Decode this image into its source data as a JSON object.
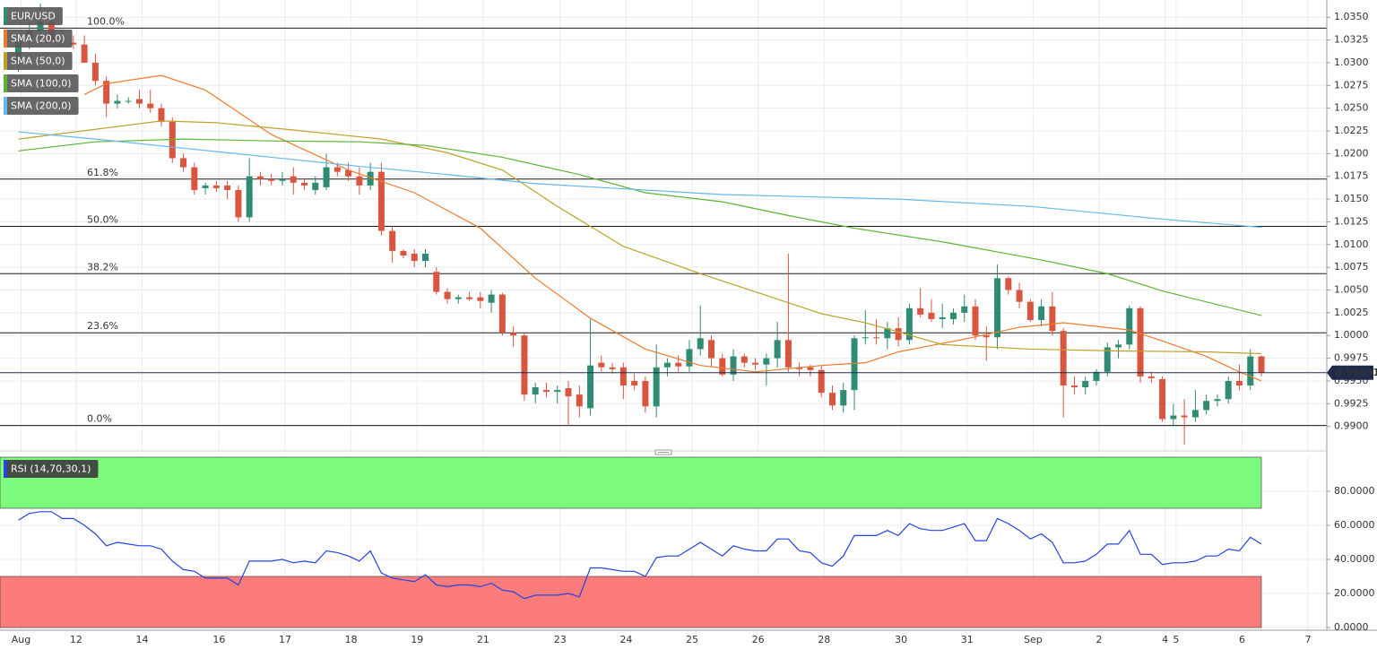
{
  "chart_data": [
    {
      "type": "candlestick",
      "name": "EUR/USD",
      "categories": [
        "Aug",
        null,
        null,
        null,
        null,
        "12",
        null,
        null,
        null,
        null,
        null,
        "14",
        null,
        null,
        null,
        null,
        null,
        null,
        "16",
        null,
        null,
        null,
        null,
        null,
        "17",
        null,
        null,
        null,
        null,
        null,
        "18",
        null,
        null,
        null,
        null,
        null,
        "19",
        null,
        null,
        null,
        null,
        null,
        "21",
        null,
        null,
        null,
        null,
        null,
        null,
        "23",
        null,
        null,
        null,
        null,
        null,
        "24",
        null,
        null,
        null,
        null,
        null,
        "25",
        null,
        null,
        null,
        null,
        null,
        "26",
        null,
        null,
        null,
        null,
        null,
        "28",
        null,
        null,
        null,
        null,
        null,
        null,
        "30",
        null,
        null,
        null,
        null,
        null,
        "31",
        null,
        null,
        null,
        null,
        null,
        "Sep",
        null,
        null,
        null,
        null,
        null,
        "2",
        null,
        null,
        null,
        null,
        null,
        "4",
        "5",
        null,
        null,
        null,
        null,
        null,
        "6",
        null,
        null,
        null,
        null,
        null,
        "7"
      ],
      "open": [
        1.03,
        1.0325,
        1.0335,
        1.0345,
        1.0325,
        1.0322,
        1.032,
        1.03,
        1.028,
        1.0255,
        1.0258,
        1.026,
        1.0255,
        1.025,
        1.0235,
        1.0195,
        1.0185,
        1.0162,
        1.0165,
        1.0165,
        1.016,
        1.013,
        1.0175,
        1.0172,
        1.017,
        1.0175,
        1.0168,
        1.016,
        1.0163,
        1.0185,
        1.0182,
        1.0175,
        1.0165,
        1.018,
        1.0115,
        1.0093,
        1.009,
        1.0082,
        1.007,
        1.0048,
        1.004,
        1.0042,
        1.0042,
        1.0036,
        1.0045,
        1.0003,
        1.0,
        0.9935,
        0.994,
        0.9938,
        0.9942,
        0.9935,
        0.992,
        0.997,
        0.9965,
        0.9965,
        0.995,
        0.995,
        0.9922,
        0.9965,
        0.997,
        0.9966,
        0.9985,
        0.9995,
        0.9975,
        0.9957,
        0.9977,
        0.997,
        0.9968,
        0.9975,
        0.9995,
        0.9965,
        0.9965,
        0.9962,
        0.9937,
        0.9923,
        0.994,
        0.9997,
        0.9998,
        0.9997,
        1.0008,
        0.9995,
        1.003,
        1.0025,
        1.0018,
        1.0018,
        1.0025,
        1.0032,
        1.0,
        0.9998,
        1.0063,
        1.005,
        1.0037,
        1.0017,
        1.0032,
        1.0005,
        0.9945,
        0.9943,
        0.995,
        0.996,
        0.9987,
        0.999,
        1.003,
        0.9955,
        0.9952,
        0.9908,
        0.9912,
        0.991,
        0.9918,
        0.9928,
        0.993,
        0.995,
        0.9945,
        0.9977,
        null,
        null,
        null,
        null
      ],
      "high": [
        1.033,
        1.0345,
        1.0365,
        1.035,
        1.0335,
        1.033,
        1.033,
        1.031,
        1.0285,
        1.0265,
        1.0262,
        1.027,
        1.027,
        1.0255,
        1.024,
        1.02,
        1.019,
        1.0168,
        1.017,
        1.017,
        1.0165,
        1.0195,
        1.018,
        1.0178,
        1.018,
        1.0185,
        1.0172,
        1.0175,
        1.02,
        1.019,
        1.019,
        1.0185,
        1.019,
        1.019,
        1.012,
        1.0095,
        1.0095,
        1.0095,
        1.0075,
        1.0052,
        1.0045,
        1.0048,
        1.0048,
        1.005,
        1.0047,
        1.001,
        1.0002,
        0.9948,
        0.9948,
        0.9945,
        0.995,
        0.9945,
        1.0018,
        0.9978,
        0.997,
        0.997,
        0.9958,
        0.9955,
        0.999,
        0.9975,
        0.9978,
        0.9995,
        1.0033,
        1.0,
        0.998,
        0.9985,
        0.998,
        0.9975,
        0.998,
        1.0015,
        1.009,
        0.997,
        0.9968,
        0.9967,
        0.9945,
        0.9948,
        1.0,
        1.0028,
        1.0018,
        1.0015,
        1.002,
        1.0035,
        1.0052,
        1.004,
        1.0035,
        1.003,
        1.0045,
        1.004,
        1.001,
        1.0078,
        1.0065,
        1.0058,
        1.004,
        1.004,
        1.0048,
        1.0008,
        0.9955,
        0.9955,
        0.9963,
        0.9992,
        0.9995,
        1.0033,
        1.0032,
        0.996,
        0.9955,
        0.9925,
        0.993,
        0.994,
        0.9935,
        0.9935,
        0.9955,
        0.9968,
        0.9985,
        0.9978,
        null,
        null,
        null,
        null
      ],
      "low": [
        1.029,
        1.0315,
        1.032,
        1.032,
        1.0318,
        1.0315,
        1.03,
        1.0275,
        1.024,
        1.025,
        1.0255,
        1.025,
        1.0245,
        1.023,
        1.019,
        1.018,
        1.0155,
        1.0155,
        1.0158,
        1.015,
        1.0125,
        1.0125,
        1.0165,
        1.0165,
        1.0165,
        1.0155,
        1.016,
        1.0155,
        1.016,
        1.0175,
        1.017,
        1.0155,
        1.016,
        1.011,
        1.008,
        1.0085,
        1.0075,
        1.0075,
        1.0045,
        1.0035,
        1.0035,
        1.0038,
        1.003,
        1.0025,
        1.0,
        0.9988,
        0.9928,
        0.9925,
        0.9932,
        0.9925,
        0.99,
        0.991,
        0.9912,
        0.996,
        0.9958,
        0.993,
        0.994,
        0.9915,
        0.991,
        0.9955,
        0.996,
        0.996,
        0.9978,
        0.9965,
        0.9955,
        0.995,
        0.9965,
        0.9962,
        0.9945,
        0.9965,
        0.996,
        0.9955,
        0.9955,
        0.9932,
        0.9918,
        0.9915,
        0.9918,
        0.999,
        0.999,
        0.9985,
        0.9988,
        0.999,
        1.002,
        1.0015,
        1.0008,
        1.0012,
        1.0015,
        0.9995,
        0.9972,
        0.9985,
        1.0045,
        1.003,
        1.0015,
        1.001,
        1.0,
        0.991,
        0.9935,
        0.9935,
        0.9945,
        0.9955,
        0.9975,
        0.9985,
        0.9948,
        0.9948,
        0.9905,
        0.99,
        0.988,
        0.9905,
        0.9913,
        0.9922,
        0.9925,
        0.994,
        0.994,
        0.9955,
        null,
        null,
        null,
        null
      ],
      "close": [
        1.0325,
        1.0335,
        1.0345,
        1.0325,
        1.0322,
        1.032,
        1.03,
        1.028,
        1.0255,
        1.0258,
        1.0258,
        1.0255,
        1.025,
        1.0235,
        1.0195,
        1.0185,
        1.016,
        1.0165,
        1.0162,
        1.016,
        1.013,
        1.0175,
        1.0172,
        1.017,
        1.0172,
        1.0168,
        1.0165,
        1.0168,
        1.0185,
        1.018,
        1.0175,
        1.0165,
        1.018,
        1.0115,
        1.0093,
        1.0088,
        1.0082,
        1.009,
        1.0048,
        1.004,
        1.0042,
        1.004,
        1.0038,
        1.0045,
        1.0003,
        1.0,
        0.9935,
        0.9943,
        0.9938,
        0.994,
        0.9933,
        0.9922,
        0.9967,
        0.9965,
        0.9963,
        0.9945,
        0.9945,
        0.9922,
        0.9965,
        0.997,
        0.9966,
        0.9985,
        0.9997,
        0.9975,
        0.9957,
        0.9977,
        0.997,
        0.9968,
        0.9975,
        0.9995,
        0.9965,
        0.9963,
        0.9962,
        0.9937,
        0.9923,
        0.994,
        0.9997,
        0.9998,
        0.9997,
        1.0008,
        0.9995,
        1.003,
        1.0023,
        1.0018,
        1.002,
        1.0025,
        1.0032,
        1.0,
        0.9998,
        1.0063,
        1.005,
        1.0037,
        1.0017,
        1.0032,
        1.0005,
        0.9945,
        0.9943,
        0.995,
        0.996,
        0.9987,
        0.999,
        1.003,
        0.9955,
        0.9953,
        0.9908,
        0.9912,
        0.991,
        0.9918,
        0.9928,
        0.993,
        0.995,
        0.9945,
        0.9977,
        0.9959,
        null,
        null,
        null,
        null
      ],
      "up_color": "#2f8c72",
      "down_color": "#d9553f",
      "series": [
        {
          "name": "SMA (20,0)",
          "color": "#ec7a2e",
          "x": [
            6,
            8,
            13,
            17,
            23,
            30,
            36,
            42,
            47,
            52,
            57,
            62,
            67,
            73,
            77,
            80,
            86,
            91,
            95,
            101,
            104,
            108,
            111,
            113
          ],
          "values": [
            1.0265,
            1.0277,
            1.0286,
            1.027,
            1.0221,
            1.0182,
            1.0157,
            1.0118,
            1.0063,
            1.0019,
            0.9985,
            0.9967,
            0.996,
            0.9967,
            0.997,
            0.9982,
            0.9996,
            1.0009,
            1.0014,
            1.0006,
            0.9994,
            0.9977,
            0.996,
            0.995
          ]
        },
        {
          "name": "SMA (50,0)",
          "color": "#bfa12a",
          "x": [
            0,
            13,
            18,
            25,
            33,
            39,
            44,
            49,
            55,
            62,
            68,
            73,
            77,
            80,
            84,
            92,
            100,
            108,
            113
          ],
          "values": [
            1.0216,
            1.0236,
            1.0234,
            1.0226,
            1.0216,
            1.0201,
            1.0182,
            1.0142,
            1.0098,
            1.0068,
            1.0044,
            1.0024,
            1.0014,
            1.0004,
            0.999,
            0.9985,
            0.9983,
            0.9982,
            0.998
          ]
        },
        {
          "name": "SMA (100,0)",
          "color": "#5cb531",
          "x": [
            0,
            7,
            15,
            23,
            31,
            37,
            44,
            51,
            57,
            64,
            70,
            76,
            84,
            93,
            99,
            104,
            113
          ],
          "values": [
            1.0203,
            1.0213,
            1.0216,
            1.0214,
            1.0213,
            1.0209,
            1.0196,
            1.0177,
            1.0157,
            1.0147,
            1.0132,
            1.0118,
            1.0103,
            1.0083,
            1.0068,
            1.0049,
            1.0022
          ]
        },
        {
          "name": "SMA (200,0)",
          "color": "#66b8ea",
          "x": [
            0,
            7,
            15,
            23,
            31,
            39,
            47,
            64,
            80,
            92,
            104,
            113
          ],
          "values": [
            1.0224,
            1.0216,
            1.0206,
            1.0196,
            1.0186,
            1.0177,
            1.0167,
            1.0155,
            1.015,
            1.0142,
            1.0128,
            1.0119
          ]
        }
      ],
      "fib_levels": [
        {
          "label": "100.0%",
          "value": 1.0338
        },
        {
          "label": "61.8%",
          "value": 1.0172
        },
        {
          "label": "50.0%",
          "value": 1.012
        },
        {
          "label": "38.2%",
          "value": 1.0068
        },
        {
          "label": "23.6%",
          "value": 1.0003
        },
        {
          "label": "0.0%",
          "value": 0.9901
        }
      ],
      "last_price": 0.99591,
      "ylim": [
        0.9876,
        1.0367
      ],
      "yticks": [
        {
          "value": 1.035,
          "label": "1.0350"
        },
        {
          "value": 1.0325,
          "label": "1.0325"
        },
        {
          "value": 1.03,
          "label": "1.0300"
        },
        {
          "value": 1.0275,
          "label": "1.0275"
        },
        {
          "value": 1.025,
          "label": "1.0250"
        },
        {
          "value": 1.0225,
          "label": "1.0225"
        },
        {
          "value": 1.02,
          "label": "1.0200"
        },
        {
          "value": 1.0175,
          "label": "1.0175"
        },
        {
          "value": 1.015,
          "label": "1.0150"
        },
        {
          "value": 1.0125,
          "label": "1.0125"
        },
        {
          "value": 1.01,
          "label": "1.0100"
        },
        {
          "value": 1.0075,
          "label": "1.0075"
        },
        {
          "value": 1.005,
          "label": "1.0050"
        },
        {
          "value": 1.0025,
          "label": "1.0025"
        },
        {
          "value": 1.0,
          "label": "1.0000"
        },
        {
          "value": 0.9975,
          "label": "0.9975"
        },
        {
          "value": 0.995,
          "label": "0.9950"
        },
        {
          "value": 0.9925,
          "label": "0.9925"
        },
        {
          "value": 0.99,
          "label": "0.9900"
        }
      ],
      "grid": true
    },
    {
      "type": "line",
      "name": "RSI (14,70,30,1)",
      "color": "#2443e0",
      "values": [
        63,
        67,
        68,
        68,
        64,
        64,
        60,
        55,
        48,
        50,
        49,
        48,
        48,
        46,
        39,
        34,
        33,
        29,
        29,
        29,
        25,
        39,
        39,
        39,
        40,
        38,
        39,
        38,
        45,
        44,
        42,
        39,
        45,
        32,
        29,
        28,
        27,
        31,
        25,
        24,
        25,
        25,
        24,
        26,
        22,
        21,
        17,
        19,
        19,
        19,
        20,
        18,
        35,
        35,
        34,
        33,
        33,
        30,
        41,
        42,
        42,
        46,
        50,
        46,
        42,
        48,
        46,
        45,
        45,
        52,
        52,
        45,
        44,
        38,
        36,
        42,
        54,
        54,
        54,
        57,
        54,
        61,
        58,
        57,
        57,
        59,
        61,
        51,
        51,
        64,
        61,
        57,
        52,
        55,
        50,
        38,
        38,
        39,
        43,
        49,
        49,
        57,
        43,
        43,
        37,
        38,
        38,
        39,
        42,
        42,
        46,
        45,
        53,
        49,
        null,
        null,
        null,
        null
      ],
      "bands": [
        {
          "from": 70,
          "to": 100,
          "color": "#7cfb7c"
        },
        {
          "from": 0,
          "to": 30,
          "color": "#fc7b7b"
        }
      ],
      "ylim": [
        0,
        100
      ],
      "yticks": [
        {
          "value": 80,
          "label": "80.0000"
        },
        {
          "value": 60,
          "label": "60.0000"
        },
        {
          "value": 40,
          "label": "40.0000"
        },
        {
          "value": 20,
          "label": "20.0000"
        },
        {
          "value": 0,
          "label": "0.0000"
        }
      ],
      "grid": true
    }
  ]
}
